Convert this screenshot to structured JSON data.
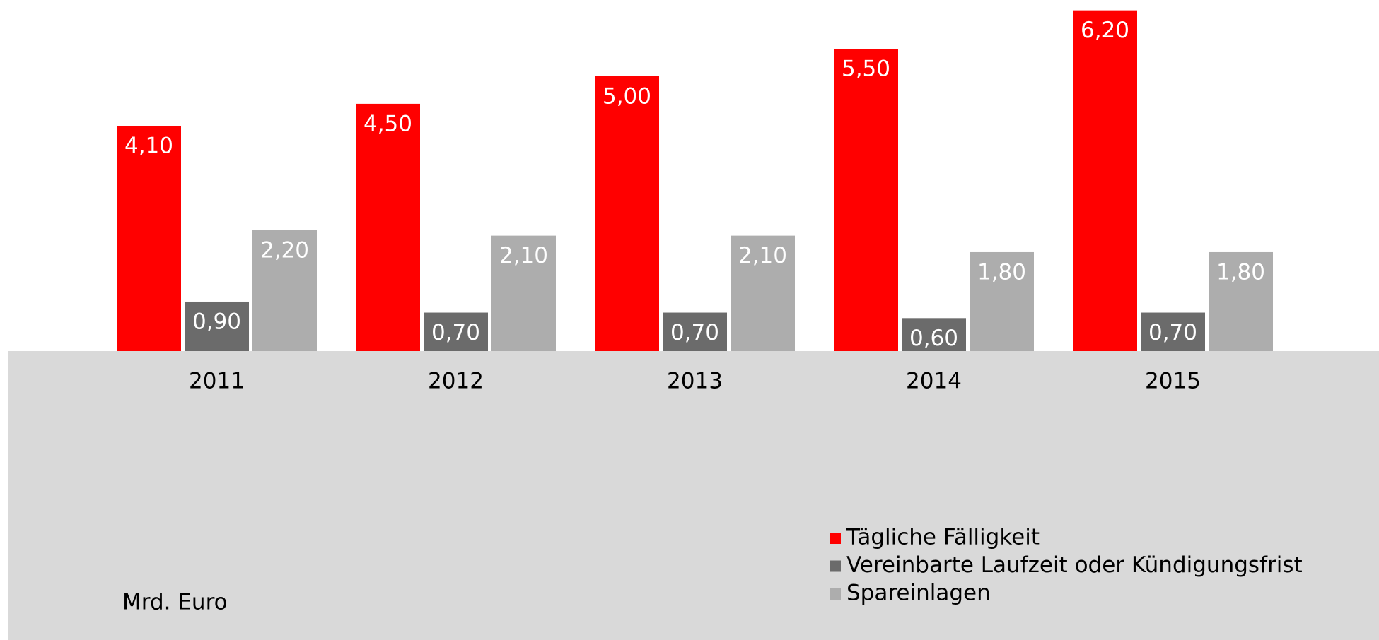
{
  "chart_data": {
    "type": "bar",
    "ylabel": "Mrd. Euro",
    "categories": [
      "2011",
      "2012",
      "2013",
      "2014",
      "2015"
    ],
    "series": [
      {
        "name": "Tägliche Fälligkeit",
        "color": "#ff0000",
        "values": [
          4.1,
          4.5,
          5.0,
          5.5,
          6.2
        ],
        "value_labels": [
          "4,10",
          "4,50",
          "5,00",
          "5,50",
          "6,20"
        ]
      },
      {
        "name": "Vereinbarte Laufzeit oder Kündigungsfrist",
        "color": "#6b6b6b",
        "values": [
          0.9,
          0.7,
          0.7,
          0.6,
          0.7
        ],
        "value_labels": [
          "0,90",
          "0,70",
          "0,70",
          "0,60",
          "0,70"
        ]
      },
      {
        "name": "Spareinlagen",
        "color": "#adadad",
        "values": [
          2.2,
          2.1,
          2.1,
          1.8,
          1.8
        ],
        "value_labels": [
          "2,20",
          "2,10",
          "2,10",
          "1,80",
          "1,80"
        ]
      }
    ]
  }
}
